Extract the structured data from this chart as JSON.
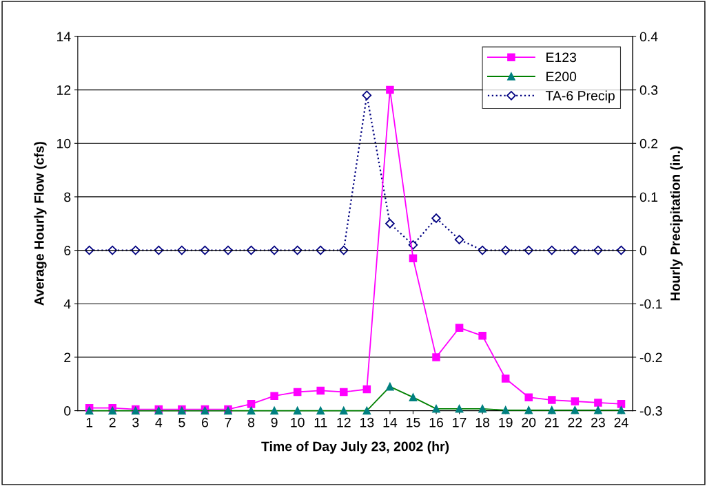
{
  "chart_data": {
    "type": "line",
    "xlabel": "Time of Day July 23, 2002 (hr)",
    "ylabel": "Average Hourly Flow (cfs)",
    "y2label": "Hourly Precipitation (in.)",
    "categories": [
      "1",
      "2",
      "3",
      "4",
      "5",
      "6",
      "7",
      "8",
      "9",
      "10",
      "11",
      "12",
      "13",
      "14",
      "15",
      "16",
      "17",
      "18",
      "19",
      "20",
      "21",
      "22",
      "23",
      "24"
    ],
    "series": [
      {
        "name": "E123",
        "color": "#ff00ff",
        "marker": "square",
        "line_style": "solid",
        "values": [
          0.1,
          0.1,
          0.05,
          0.05,
          0.05,
          0.05,
          0.05,
          0.25,
          0.55,
          0.7,
          0.75,
          0.7,
          0.8,
          12,
          5.7,
          2.0,
          3.1,
          2.8,
          1.2,
          0.5,
          0.4,
          0.35,
          0.3,
          0.25
        ]
      },
      {
        "name": "E200",
        "color": "#008000",
        "marker": "triangle",
        "line_style": "solid",
        "values": [
          0,
          0,
          0,
          0,
          0,
          0,
          0,
          0,
          0,
          0,
          0,
          0,
          0,
          0.9,
          0.5,
          0.07,
          0.07,
          0.07,
          0.02,
          0.02,
          0.02,
          0.02,
          0.02,
          0.02
        ]
      },
      {
        "name": "TA-6 Precip",
        "color": "#000080",
        "marker": "diamond",
        "line_style": "dotted",
        "axis": "y2",
        "values": [
          0,
          0,
          0,
          0,
          0,
          0,
          0,
          0,
          0,
          0,
          0,
          0,
          0.29,
          0.05,
          0.01,
          0.06,
          0.02,
          0,
          0,
          0,
          0,
          0,
          0,
          0
        ]
      }
    ],
    "ylim": [
      0,
      14
    ],
    "yticks": [
      0,
      2,
      4,
      6,
      8,
      10,
      12,
      14
    ],
    "y2lim": [
      -0.3,
      0.4
    ],
    "y2ticks": [
      -0.3,
      -0.2,
      -0.1,
      0,
      0.1,
      0.2,
      0.3,
      0.4
    ],
    "grid": "y",
    "legend": "top right"
  }
}
